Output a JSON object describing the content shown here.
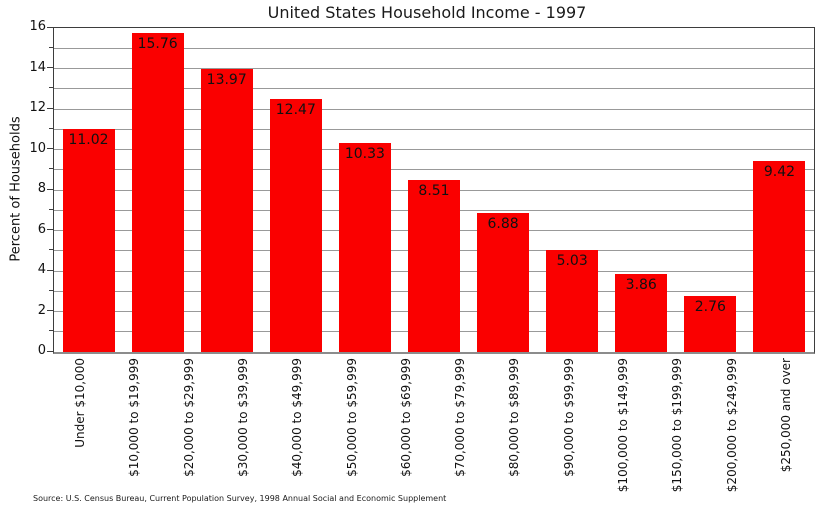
{
  "colors": {
    "bar": "#fa0000",
    "grid": "#999999",
    "spine": "#3d3d3d",
    "bottom_spine": "#8c8c8c",
    "text": "#111111"
  },
  "chart_data": {
    "type": "bar",
    "title": "United States Household Income - 1997",
    "ylabel": "Percent of Households",
    "xlabel": "",
    "source": "Source: U.S. Census Bureau, Current Population Survey, 1998 Annual Social and Economic Supplement",
    "x_tick_labels": [
      "Under $10,000",
      "$10,000 to $19,999",
      "$20,000 to $29,999",
      "$30,000 to $39,999",
      "$40,000 to $49,999",
      "$50,000 to $59,999",
      "$60,000 to $69,999",
      "$70,000 to $79,999",
      "$80,000 to $89,999",
      "$90,000 to $99,999",
      "$100,000 to $149,999",
      "$150,000 to $199,999",
      "$200,000 to $249,999",
      "$250,000 and over"
    ],
    "values": [
      11.02,
      15.76,
      13.97,
      12.47,
      10.33,
      8.51,
      6.88,
      5.03,
      3.86,
      2.76,
      9.42
    ],
    "value_labels": [
      "11.02",
      "15.76",
      "13.97",
      "12.47",
      "10.33",
      "8.51",
      "6.88",
      "5.03",
      "3.86",
      "2.76",
      "9.42"
    ],
    "ylim": [
      0,
      16
    ],
    "y_major_ticks": [
      0,
      2,
      4,
      6,
      8,
      10,
      12,
      14,
      16
    ],
    "grid_step": 1,
    "grid_on": true,
    "legend": "none",
    "note": "figure shows 11 bars but 14 x tick labels evenly spaced along axis"
  }
}
